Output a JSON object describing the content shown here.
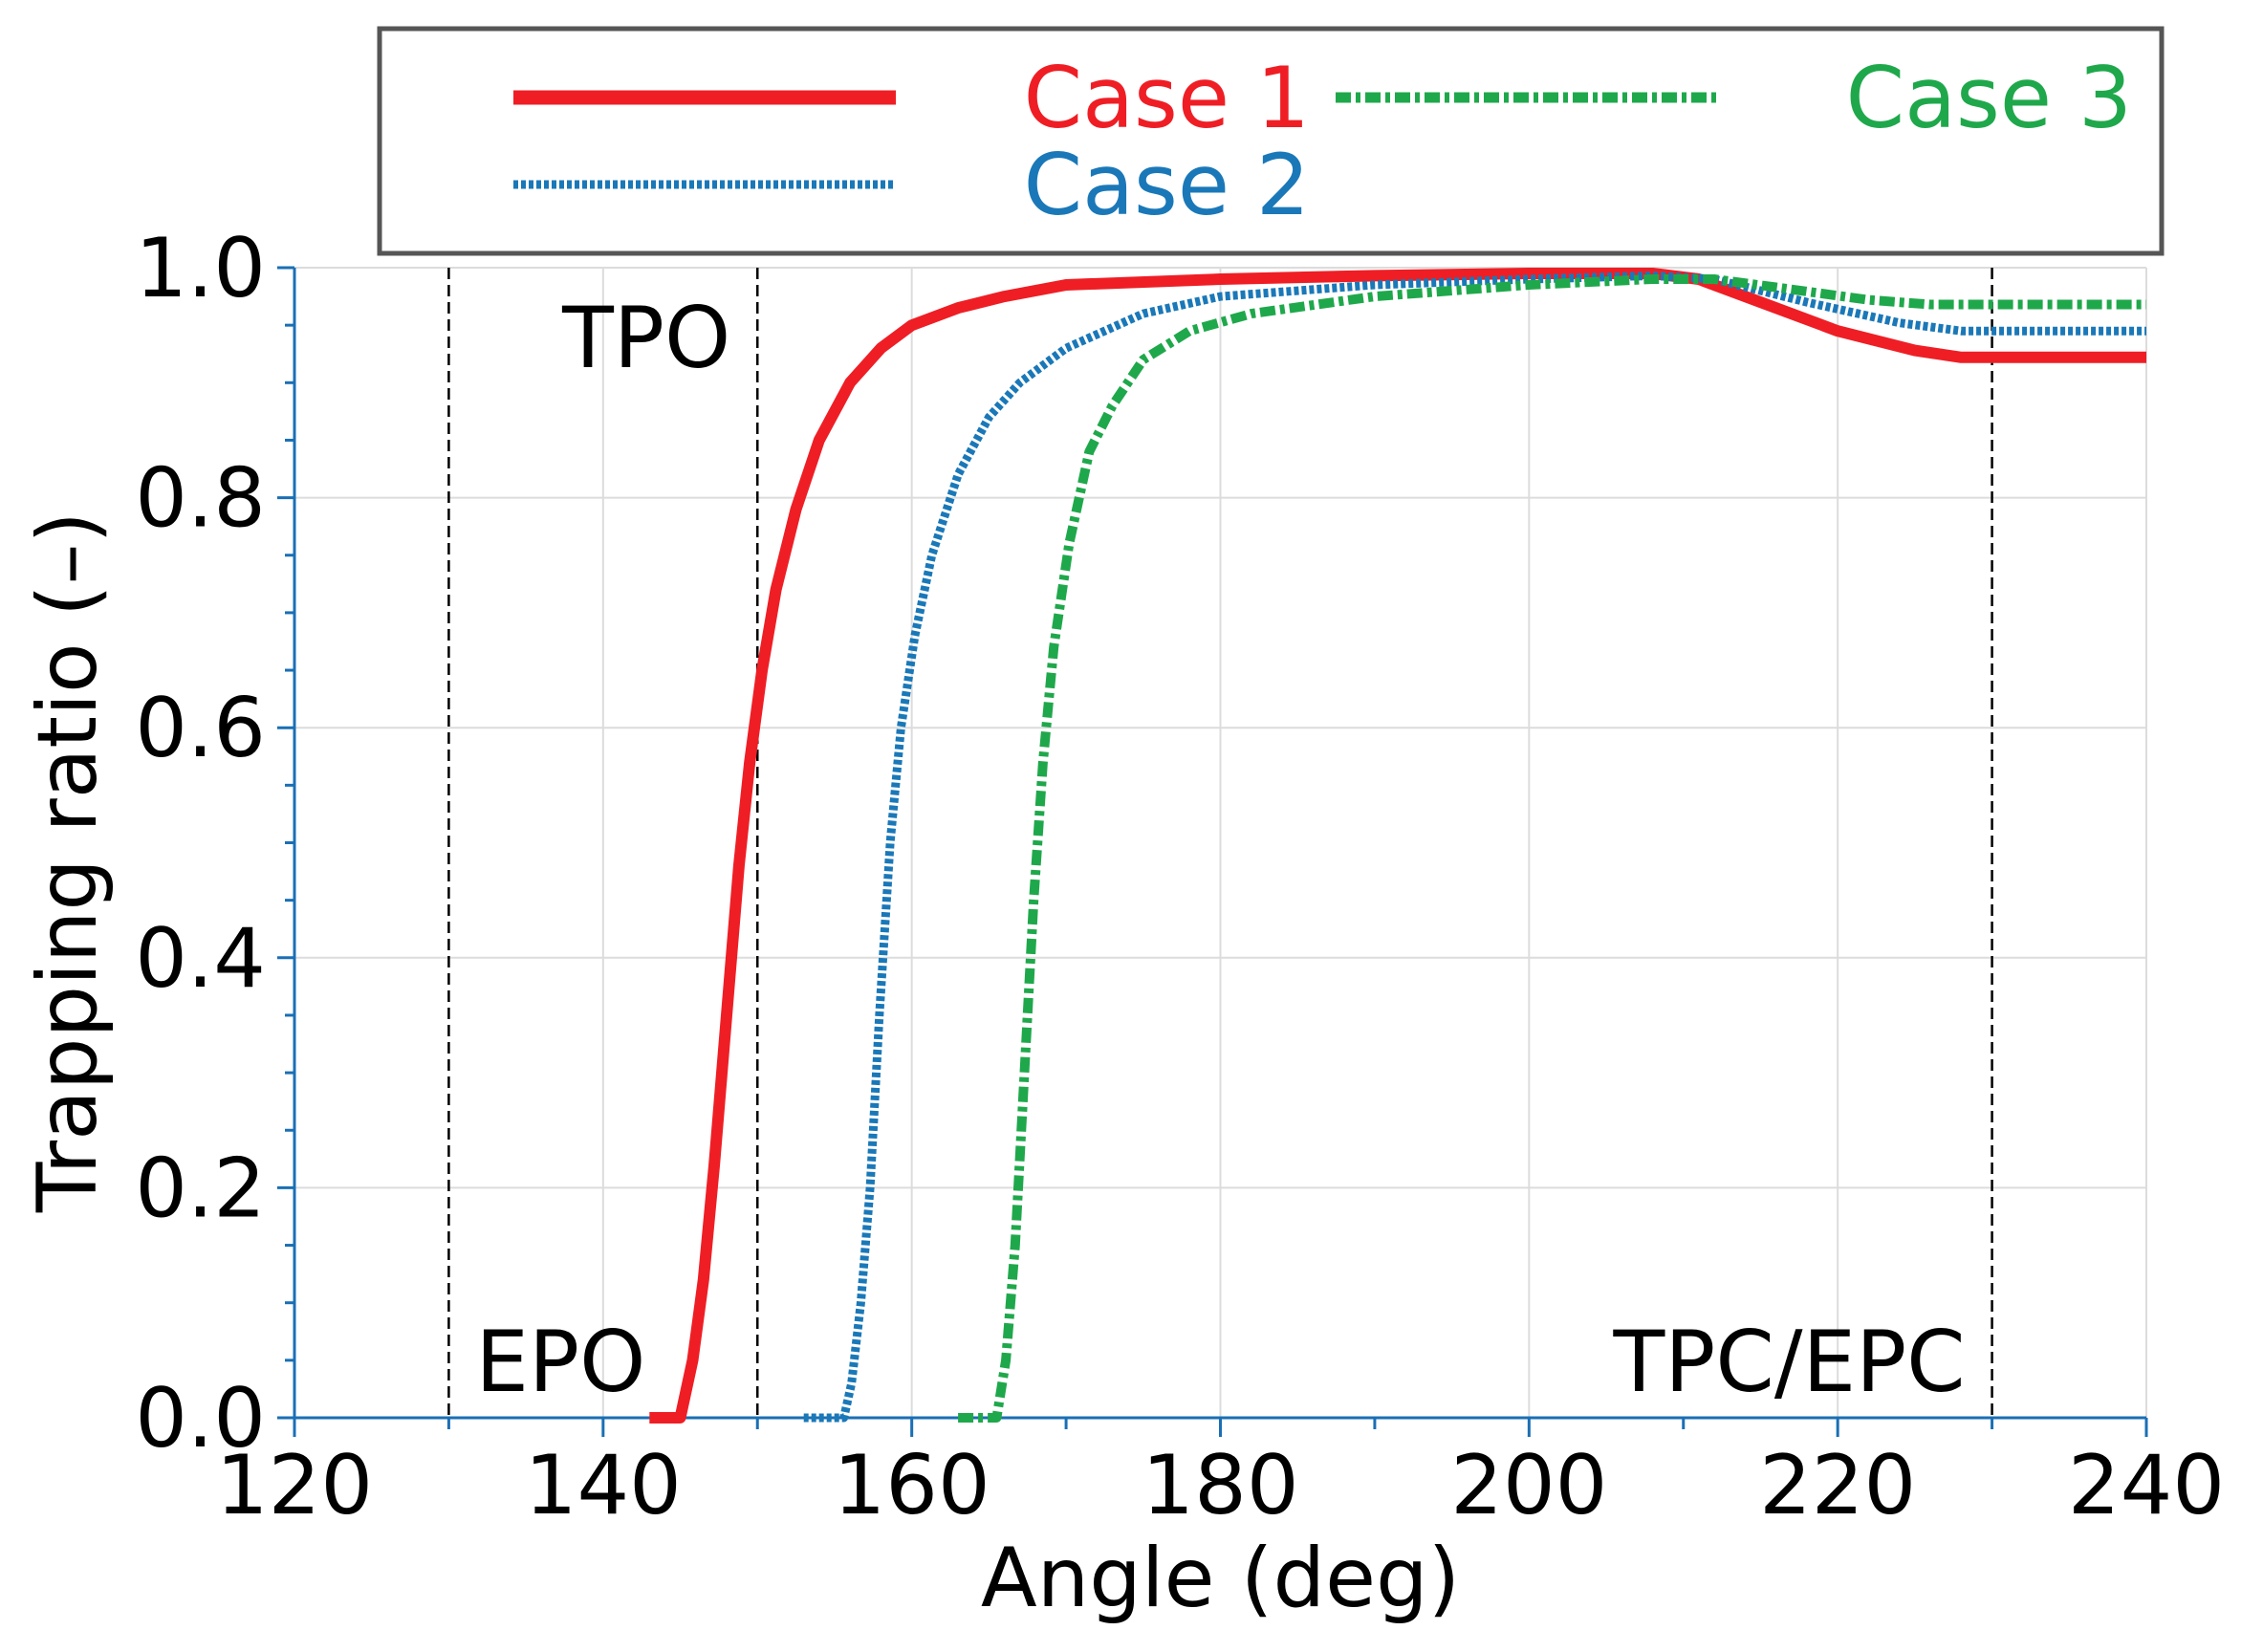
{
  "chart_data": {
    "type": "line",
    "title": "",
    "xlabel": "Angle (deg)",
    "ylabel": "Trapping ratio (–)",
    "xlim": [
      120,
      240
    ],
    "ylim": [
      0.0,
      1.0
    ],
    "xticks": [
      120,
      140,
      160,
      180,
      200,
      220,
      240
    ],
    "xtick_labels": [
      "120",
      "140",
      "160",
      "180",
      "200",
      "220",
      "240"
    ],
    "yticks": [
      0.0,
      0.2,
      0.4,
      0.6,
      0.8,
      1.0
    ],
    "ytick_labels": [
      "0.0",
      "0.2",
      "0.4",
      "0.6",
      "0.8",
      "1.0"
    ],
    "grid": true,
    "legend_position": "top",
    "reference_lines": [
      {
        "x": 130,
        "label": "EPO",
        "label_anchor": "right",
        "label_y": 0.05
      },
      {
        "x": 150,
        "label": "TPO",
        "label_anchor": "left",
        "label_y": 0.94
      },
      {
        "x": 230,
        "label": "TPC/EPC",
        "label_anchor": "left",
        "label_y": 0.05
      }
    ],
    "series": [
      {
        "name": "Case 1",
        "color": "#ef1e25",
        "style": "solid",
        "points": [
          [
            143,
            0.0
          ],
          [
            145,
            0.0
          ],
          [
            145.8,
            0.05
          ],
          [
            146.5,
            0.12
          ],
          [
            147.2,
            0.22
          ],
          [
            148,
            0.35
          ],
          [
            148.8,
            0.48
          ],
          [
            149.5,
            0.57
          ],
          [
            150.3,
            0.65
          ],
          [
            151.2,
            0.72
          ],
          [
            152.5,
            0.79
          ],
          [
            154,
            0.85
          ],
          [
            156,
            0.9
          ],
          [
            158,
            0.93
          ],
          [
            160,
            0.95
          ],
          [
            163,
            0.965
          ],
          [
            166,
            0.975
          ],
          [
            170,
            0.985
          ],
          [
            180,
            0.99
          ],
          [
            190,
            0.993
          ],
          [
            200,
            0.995
          ],
          [
            208,
            0.995
          ],
          [
            211,
            0.99
          ],
          [
            215,
            0.97
          ],
          [
            220,
            0.945
          ],
          [
            225,
            0.928
          ],
          [
            228,
            0.922
          ],
          [
            240,
            0.922
          ]
        ]
      },
      {
        "name": "Case 2",
        "color": "#1a78b8",
        "style": "dotted",
        "points": [
          [
            153,
            0.0
          ],
          [
            155.6,
            0.0
          ],
          [
            156.1,
            0.03
          ],
          [
            156.7,
            0.1
          ],
          [
            157.3,
            0.2
          ],
          [
            157.9,
            0.35
          ],
          [
            158.6,
            0.5
          ],
          [
            159.3,
            0.6
          ],
          [
            160.2,
            0.68
          ],
          [
            161.3,
            0.75
          ],
          [
            163,
            0.82
          ],
          [
            165,
            0.87
          ],
          [
            167,
            0.9
          ],
          [
            170,
            0.93
          ],
          [
            175,
            0.96
          ],
          [
            180,
            0.975
          ],
          [
            190,
            0.985
          ],
          [
            200,
            0.99
          ],
          [
            208,
            0.993
          ],
          [
            212,
            0.99
          ],
          [
            218,
            0.97
          ],
          [
            224,
            0.952
          ],
          [
            228,
            0.945
          ],
          [
            240,
            0.945
          ]
        ]
      },
      {
        "name": "Case 3",
        "color": "#1fa84b",
        "style": "dashdot",
        "points": [
          [
            163,
            0.0
          ],
          [
            165.5,
            0.0
          ],
          [
            166.1,
            0.05
          ],
          [
            166.7,
            0.15
          ],
          [
            167.3,
            0.3
          ],
          [
            167.9,
            0.45
          ],
          [
            168.5,
            0.57
          ],
          [
            169.2,
            0.67
          ],
          [
            170.2,
            0.76
          ],
          [
            171.5,
            0.84
          ],
          [
            173,
            0.88
          ],
          [
            175,
            0.92
          ],
          [
            178,
            0.945
          ],
          [
            182,
            0.96
          ],
          [
            190,
            0.975
          ],
          [
            200,
            0.985
          ],
          [
            208,
            0.99
          ],
          [
            212,
            0.99
          ],
          [
            216,
            0.983
          ],
          [
            222,
            0.972
          ],
          [
            226,
            0.968
          ],
          [
            240,
            0.968
          ]
        ]
      }
    ]
  }
}
